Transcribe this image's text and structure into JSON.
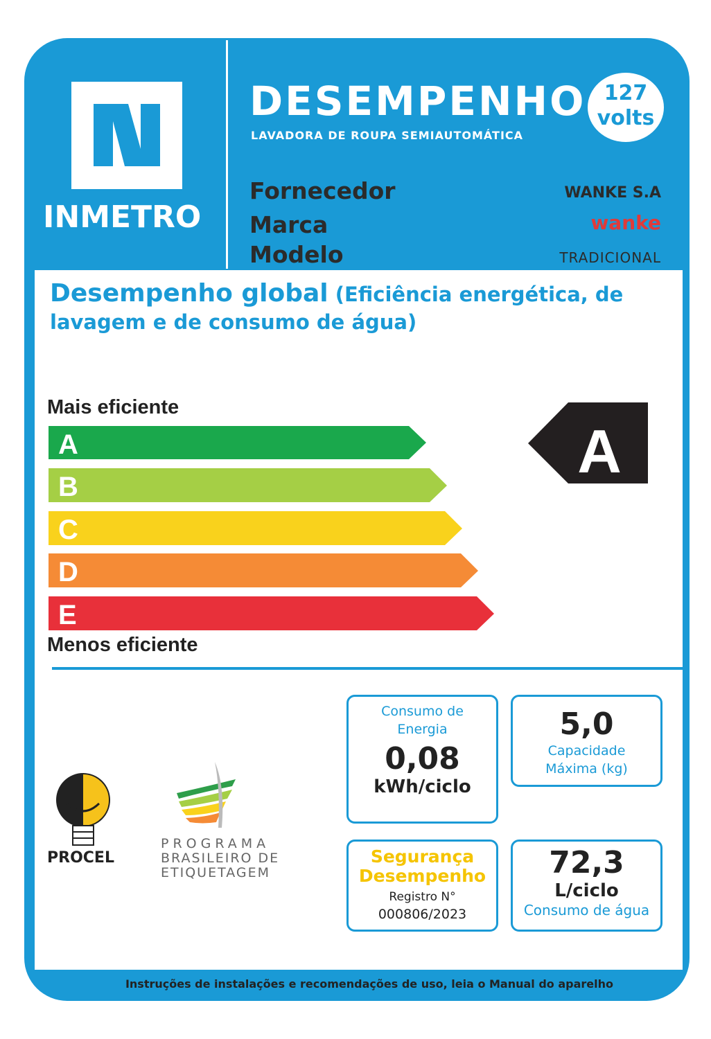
{
  "header": {
    "logo_text": "INMETRO",
    "title": "DESEMPENHO",
    "subtitle": "LAVADORA DE ROUPA SEMIAUTOMÁTICA",
    "voltage": "127",
    "voltage_unit": "volts",
    "fields": [
      {
        "label": "Fornecedor",
        "value": "WANKE S.A"
      },
      {
        "label": "Marca",
        "value": "wanke"
      },
      {
        "label": "Modelo",
        "value": "TRADICIONAL"
      }
    ]
  },
  "performance": {
    "heading": "Desempenho global",
    "heading_note": "(Eficiência energética, de lavagem e de consumo de água)",
    "top_label": "Mais eficiente",
    "bottom_label": "Menos eficiente",
    "classes": [
      "A",
      "B",
      "C",
      "D",
      "E"
    ],
    "rating": "A"
  },
  "boxes": {
    "energy": {
      "label": "Consumo de Energia",
      "value": "0,08",
      "unit": "kWh/ciclo"
    },
    "capacity": {
      "value": "5,0",
      "label": "Capacidade Máxima (kg)"
    },
    "safety": {
      "title": [
        "Segurança",
        "Desempenho"
      ],
      "registry_label": "Registro N°",
      "registry": "000806/2023"
    },
    "water": {
      "value": "72,3",
      "unit": "L/ciclo",
      "label": "Consumo de água"
    }
  },
  "logos": {
    "procel": "PROCEL",
    "program": [
      "PROGRAMA",
      "BRASILEIRO DE",
      "ETIQUETAGEM"
    ]
  },
  "footer": "Instruções de instalações e recomendações de uso, leia o Manual do aparelho"
}
